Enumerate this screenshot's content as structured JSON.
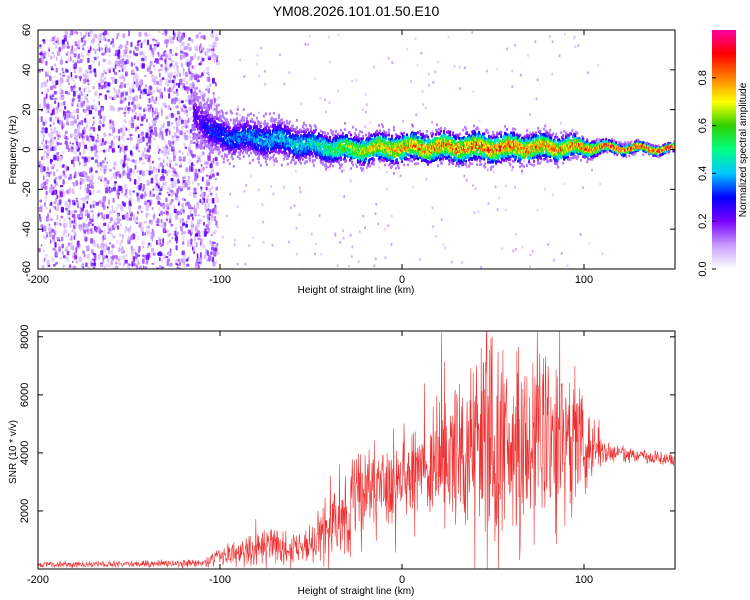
{
  "title": "YM08.2026.101.01.50.E10",
  "chart_data": [
    {
      "type": "heatmap",
      "name": "spectrogram",
      "xlabel": "Height of straight line (km)",
      "ylabel": "Frequency (Hz)",
      "xlim": [
        -200,
        150
      ],
      "ylim": [
        -60,
        60
      ],
      "xticks": [
        -200,
        -100,
        0,
        100
      ],
      "yticks": [
        -60,
        -40,
        -20,
        0,
        20,
        40,
        60
      ],
      "noise_region": {
        "x_from": -200,
        "x_to": -102,
        "amplitude_range": [
          0.05,
          0.25
        ]
      },
      "signal_onset_x": -115,
      "signal_track": [
        {
          "x": -115,
          "freq": 20,
          "width": 12,
          "amplitude": 0.25
        },
        {
          "x": -105,
          "freq": 8,
          "width": 10,
          "amplitude": 0.35
        },
        {
          "x": -90,
          "freq": 6,
          "width": 9,
          "amplitude": 0.4
        },
        {
          "x": -70,
          "freq": 5,
          "width": 9,
          "amplitude": 0.45
        },
        {
          "x": -50,
          "freq": 2,
          "width": 8,
          "amplitude": 0.5
        },
        {
          "x": -30,
          "freq": 0,
          "width": 7,
          "amplitude": 0.7
        },
        {
          "x": 0,
          "freq": 1,
          "width": 7,
          "amplitude": 0.85
        },
        {
          "x": 30,
          "freq": 1,
          "width": 7,
          "amplitude": 0.9
        },
        {
          "x": 60,
          "freq": 1,
          "width": 7,
          "amplitude": 0.9
        },
        {
          "x": 90,
          "freq": 1,
          "width": 6,
          "amplitude": 0.85
        },
        {
          "x": 110,
          "freq": 1,
          "width": 3,
          "amplitude": 0.95
        },
        {
          "x": 150,
          "freq": 0,
          "width": 2,
          "amplitude": 1.0
        }
      ],
      "colorbar": {
        "label": "Normalized spectral amplitude",
        "range": [
          0.0,
          1.0
        ],
        "ticks": [
          "0.0",
          "0.2",
          "0.4",
          "0.6",
          "0.8"
        ],
        "tick_values": [
          0.0,
          0.2,
          0.4,
          0.6,
          0.8
        ],
        "colors": [
          "#ffffff",
          "#c79bff",
          "#7b00ff",
          "#0000ff",
          "#00c8ff",
          "#00ff80",
          "#30d000",
          "#ffff00",
          "#ff8000",
          "#ff0000",
          "#ff00a0"
        ]
      }
    },
    {
      "type": "line",
      "name": "snr",
      "xlabel": "Height of straight line (km)",
      "ylabel": "SNR (10 * v/v)",
      "xlim": [
        -200,
        150
      ],
      "ylim": [
        0,
        8200
      ],
      "xticks": [
        -200,
        -100,
        0,
        100
      ],
      "yticks": [
        2000,
        4000,
        6000,
        8000
      ],
      "color": "#f03030",
      "envelope": [
        {
          "x": -200,
          "base": 150,
          "spread": 120
        },
        {
          "x": -110,
          "base": 200,
          "spread": 150
        },
        {
          "x": -95,
          "base": 500,
          "spread": 500
        },
        {
          "x": -70,
          "base": 800,
          "spread": 800
        },
        {
          "x": -55,
          "base": 700,
          "spread": 600
        },
        {
          "x": -40,
          "base": 1500,
          "spread": 1500
        },
        {
          "x": -25,
          "base": 2200,
          "spread": 2600
        },
        {
          "x": -10,
          "base": 2800,
          "spread": 1600
        },
        {
          "x": 10,
          "base": 3500,
          "spread": 2000
        },
        {
          "x": 30,
          "base": 4000,
          "spread": 3000
        },
        {
          "x": 50,
          "base": 4400,
          "spread": 4200
        },
        {
          "x": 70,
          "base": 4500,
          "spread": 3800
        },
        {
          "x": 85,
          "base": 4500,
          "spread": 4200
        },
        {
          "x": 100,
          "base": 4200,
          "spread": 2000
        },
        {
          "x": 115,
          "base": 4000,
          "spread": 300
        },
        {
          "x": 150,
          "base": 3800,
          "spread": 300
        }
      ]
    }
  ]
}
